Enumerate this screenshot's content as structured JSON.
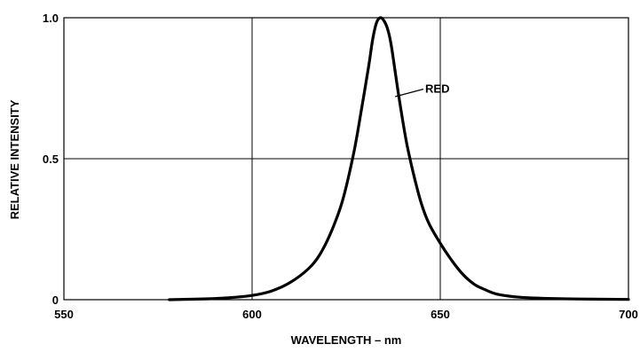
{
  "chart_data": {
    "type": "line",
    "xlabel": "WAVELENGTH – nm",
    "ylabel": "RELATIVE INTENSITY",
    "xlim": [
      550,
      700
    ],
    "ylim": [
      0,
      1.0
    ],
    "x_ticks": [
      {
        "value": 550,
        "label": "550"
      },
      {
        "value": 600,
        "label": "600"
      },
      {
        "value": 650,
        "label": "650"
      },
      {
        "value": 700,
        "label": "700"
      }
    ],
    "y_ticks": [
      {
        "value": 0,
        "label": "0"
      },
      {
        "value": 0.5,
        "label": "0.5"
      },
      {
        "value": 1.0,
        "label": "1.0"
      }
    ],
    "grid": true,
    "series": [
      {
        "name": "RED",
        "color": "#000000",
        "x": [
          578,
          585,
          590,
          595,
          600,
          605,
          610,
          615,
          618,
          621,
          624,
          627,
          629,
          631,
          632,
          633,
          634,
          635,
          636,
          637,
          639,
          641,
          643,
          645,
          647,
          650,
          653,
          656,
          659,
          662,
          665,
          670,
          675,
          680,
          690,
          700
        ],
        "y": [
          0.0,
          0.002,
          0.004,
          0.008,
          0.015,
          0.03,
          0.06,
          0.11,
          0.16,
          0.24,
          0.35,
          0.52,
          0.67,
          0.83,
          0.92,
          0.98,
          1.0,
          0.99,
          0.96,
          0.9,
          0.72,
          0.56,
          0.44,
          0.34,
          0.27,
          0.2,
          0.14,
          0.09,
          0.055,
          0.035,
          0.02,
          0.01,
          0.006,
          0.004,
          0.002,
          0.001
        ]
      }
    ],
    "annotations": [
      {
        "text": "RED",
        "x": 646,
        "y": 0.75,
        "target_x": 638,
        "target_y": 0.72
      }
    ]
  }
}
